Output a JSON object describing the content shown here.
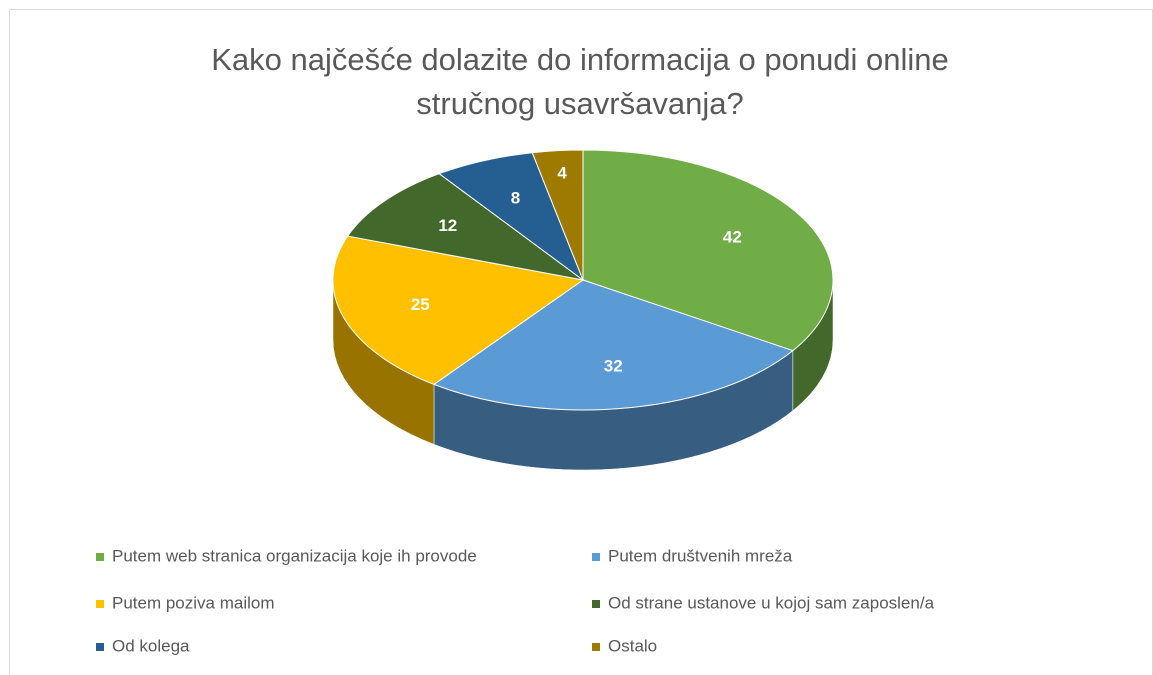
{
  "chart_data": {
    "type": "pie",
    "title": "Kako najčešće dolazite do informacija o ponudi online stručnog usavršavanja?",
    "categories": [
      "Putem web stranica organizacija koje ih provode",
      "Putem društvenih mreža",
      "Putem poziva mailom",
      "Od strane ustanove u kojoj sam zaposlen/a",
      "Od kolega",
      "Ostalo"
    ],
    "values": [
      42,
      32,
      25,
      12,
      8,
      4
    ],
    "colors": [
      "#70ad47",
      "#5b9bd5",
      "#ffc000",
      "#43682b",
      "#255e91",
      "#9e7a00"
    ],
    "legend": "bottom"
  }
}
